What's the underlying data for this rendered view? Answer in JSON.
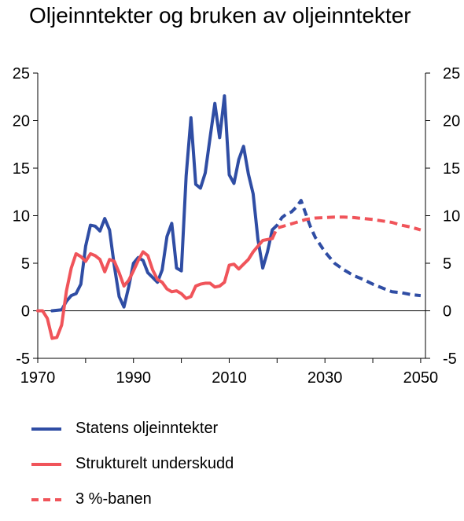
{
  "title": "Oljeinntekter og bruken av oljeinntekter",
  "colors": {
    "blue": "#2F4DA4",
    "red": "#F0545A",
    "axis": "#000000"
  },
  "legend": {
    "items": [
      {
        "label": "Statens oljeinntekter",
        "color": "#2F4DA4",
        "style": "solid"
      },
      {
        "label": "Strukturelt underskudd",
        "color": "#F0545A",
        "style": "solid"
      },
      {
        "label": "3 %-banen",
        "color": "#F0545A",
        "style": "dashed"
      }
    ]
  },
  "chart_data": {
    "type": "line",
    "title": "Oljeinntekter og bruken av oljeinntekter",
    "xlim": [
      1970,
      2051
    ],
    "ylim": [
      -5,
      25
    ],
    "x_ticks": [
      1970,
      1990,
      2010,
      2030,
      2050
    ],
    "y_ticks": [
      -5,
      0,
      5,
      10,
      15,
      20,
      25
    ],
    "grid": false,
    "legend_position": "bottom",
    "zero_line": true,
    "dual_y_axis": true,
    "series": [
      {
        "name": "Statens oljeinntekter",
        "color": "#2F4DA4",
        "style": "solid",
        "x": [
          1973,
          1975,
          1976,
          1977,
          1978,
          1979,
          1980,
          1981,
          1982,
          1983,
          1984,
          1985,
          1986,
          1987,
          1988,
          1989,
          1990,
          1991,
          1992,
          1993,
          1994,
          1995,
          1996,
          1997,
          1998,
          1999,
          2000,
          2001,
          2002,
          2003,
          2004,
          2005,
          2006,
          2007,
          2008,
          2009,
          2010,
          2011,
          2012,
          2013,
          2014,
          2015,
          2016,
          2017,
          2018,
          2019
        ],
        "y": [
          0,
          0.1,
          1,
          1.6,
          1.8,
          2.8,
          6.8,
          9.0,
          8.9,
          8.4,
          9.7,
          8.5,
          4.7,
          1.5,
          0.4,
          2.5,
          5.0,
          5.6,
          5.3,
          4.0,
          3.5,
          3.0,
          4.3,
          7.8,
          9.2,
          4.5,
          4.2,
          14.2,
          20.3,
          13.3,
          12.9,
          14.5,
          18.2,
          21.8,
          18.2,
          22.6,
          14.3,
          13.4,
          15.9,
          17.3,
          14.4,
          12.3,
          7.5,
          4.5,
          6.2,
          8.5
        ]
      },
      {
        "name": "",
        "color": "#2F4DA4",
        "style": "dashed",
        "x": [
          2019,
          2020,
          2021,
          2022,
          2023,
          2024,
          2025,
          2026,
          2027,
          2028,
          2030,
          2032,
          2034,
          2036,
          2038,
          2040,
          2042,
          2044,
          2046,
          2048,
          2050
        ],
        "y": [
          8.5,
          9.0,
          9.8,
          10.2,
          10.4,
          10.9,
          11.6,
          10.2,
          8.8,
          7.7,
          6.2,
          5.0,
          4.3,
          3.7,
          3.3,
          2.8,
          2.4,
          2.0,
          1.9,
          1.7,
          1.6
        ]
      },
      {
        "name": "Strukturelt underskudd",
        "color": "#F0545A",
        "style": "solid",
        "x": [
          1970,
          1971,
          1972,
          1973,
          1974,
          1975,
          1976,
          1977,
          1978,
          1979,
          1980,
          1981,
          1982,
          1983,
          1984,
          1985,
          1986,
          1987,
          1988,
          1989,
          1990,
          1991,
          1992,
          1993,
          1994,
          1995,
          1996,
          1997,
          1998,
          1999,
          2000,
          2001,
          2002,
          2003,
          2004,
          2005,
          2006,
          2007,
          2008,
          2009,
          2010,
          2011,
          2012,
          2013,
          2014,
          2015,
          2016,
          2017,
          2018,
          2019
        ],
        "y": [
          0,
          0,
          -0.8,
          -2.9,
          -2.8,
          -1.5,
          2.1,
          4.5,
          6.0,
          5.7,
          5.2,
          6.0,
          5.8,
          5.4,
          4.1,
          5.4,
          5.2,
          4.0,
          2.6,
          3.2,
          4.2,
          5.3,
          6.2,
          5.8,
          4.3,
          3.3,
          3.0,
          2.3,
          2.0,
          2.1,
          1.8,
          1.3,
          1.5,
          2.6,
          2.8,
          2.9,
          2.9,
          2.5,
          2.6,
          3.0,
          4.8,
          4.9,
          4.4,
          4.9,
          5.4,
          6.2,
          6.8,
          7.4,
          7.5,
          7.6
        ]
      },
      {
        "name": "3 %-banen",
        "color": "#F0545A",
        "style": "dashed",
        "x": [
          2019,
          2020,
          2022,
          2024,
          2026,
          2028,
          2030,
          2032,
          2034,
          2036,
          2038,
          2040,
          2042,
          2044,
          2046,
          2048,
          2050
        ],
        "y": [
          7.6,
          8.7,
          9.0,
          9.3,
          9.6,
          9.75,
          9.8,
          9.85,
          9.85,
          9.8,
          9.7,
          9.6,
          9.45,
          9.3,
          9.0,
          8.8,
          8.5
        ]
      }
    ]
  }
}
